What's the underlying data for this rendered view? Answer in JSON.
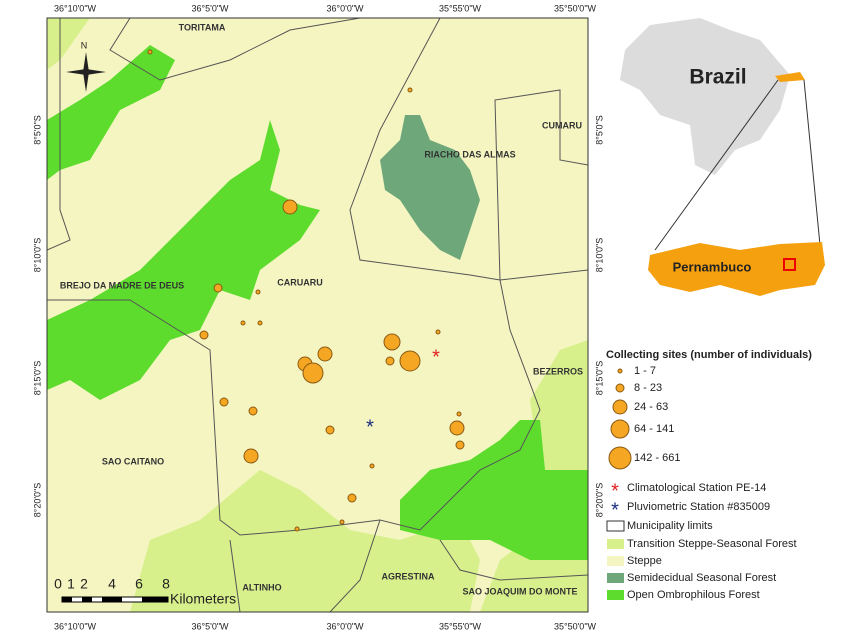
{
  "map": {
    "top_coords": [
      "36°10'0\"W",
      "36°5'0\"W",
      "36°0'0\"W",
      "35°55'0\"W",
      "35°50'0\"W"
    ],
    "bottom_coords": [
      "36°10'0\"W",
      "36°5'0\"W",
      "36°0'0\"W",
      "35°55'0\"W",
      "35°50'0\"W"
    ],
    "left_coords": [
      "8°5'0\"S",
      "8°10'0\"S",
      "8°15'0\"S",
      "8°20'0\"S"
    ],
    "right_coords": [
      "8°5'0\"S",
      "8°10'0\"S",
      "8°15'0\"S",
      "8°20'0\"S"
    ],
    "places": [
      "TORITAMA",
      "CUMARU",
      "RIACHO DAS ALMAS",
      "BREJO DA MADRE DE DEUS",
      "CARUARU",
      "BEZERROS",
      "SAO CAITANO",
      "ALTINHO",
      "AGRESTINA",
      "SAO JOAQUIM DO MONTE"
    ],
    "north": "N",
    "scale": {
      "ticks": [
        "0",
        "1",
        "2",
        "4",
        "6",
        "8"
      ],
      "unit": "Kilometers"
    }
  },
  "inset": {
    "country": "Brazil",
    "state": "Pernambuco"
  },
  "legend": {
    "title": "Collecting sites (number of individuals)",
    "sites": [
      "1 - 7",
      "8 - 23",
      "24 - 63",
      "64 - 141",
      "142 - 661"
    ],
    "items": [
      "Climatological Station PE-14",
      "Pluviometric Station #835009",
      "Municipality limits",
      "Transition Steppe-Seasonal Forest",
      "Steppe",
      "Semidecidual Seasonal Forest",
      "Open Ombrophilous Forest"
    ]
  }
}
